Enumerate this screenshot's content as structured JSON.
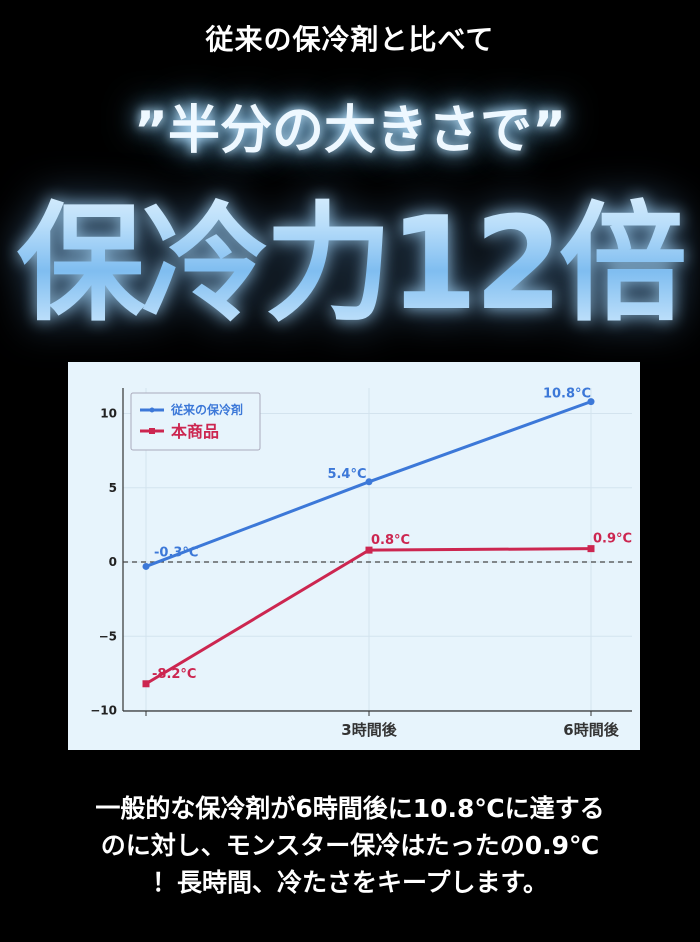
{
  "header": {
    "subtitle": "従来の保冷剤と比べて",
    "catchphrase": "”半分の大きさで”",
    "headline": "保冷力12倍"
  },
  "chart_data": {
    "type": "line",
    "categories": [
      "",
      "3時間後",
      "6時間後"
    ],
    "series": [
      {
        "name": "従来の保冷剤",
        "values": [
          -0.3,
          5.4,
          10.8
        ],
        "labels": [
          "-0.3°C",
          "5.4°C",
          "10.8°C"
        ],
        "color": "#3c78d8",
        "marker": "circle"
      },
      {
        "name": "本商品",
        "values": [
          -8.2,
          0.8,
          0.9
        ],
        "labels": [
          "-8.2°C",
          "0.8°C",
          "0.9°C"
        ],
        "color": "#cc2650",
        "marker": "square"
      }
    ],
    "yticks": [
      "10",
      "5",
      "0",
      "−5",
      "−10"
    ],
    "ytick_values": [
      10,
      5,
      0,
      -5,
      -10
    ],
    "ylim": [
      -10,
      11.7
    ],
    "reference_line": 0,
    "grid": true,
    "legend": "top-left",
    "title": "",
    "xlabel": "",
    "ylabel": ""
  },
  "description": [
    "一般的な保冷剤が6時間後に10.8℃に達する",
    "のに対し、モンスター保冷はたったの0.9℃",
    "！長時間、冷たさをキープします。"
  ]
}
